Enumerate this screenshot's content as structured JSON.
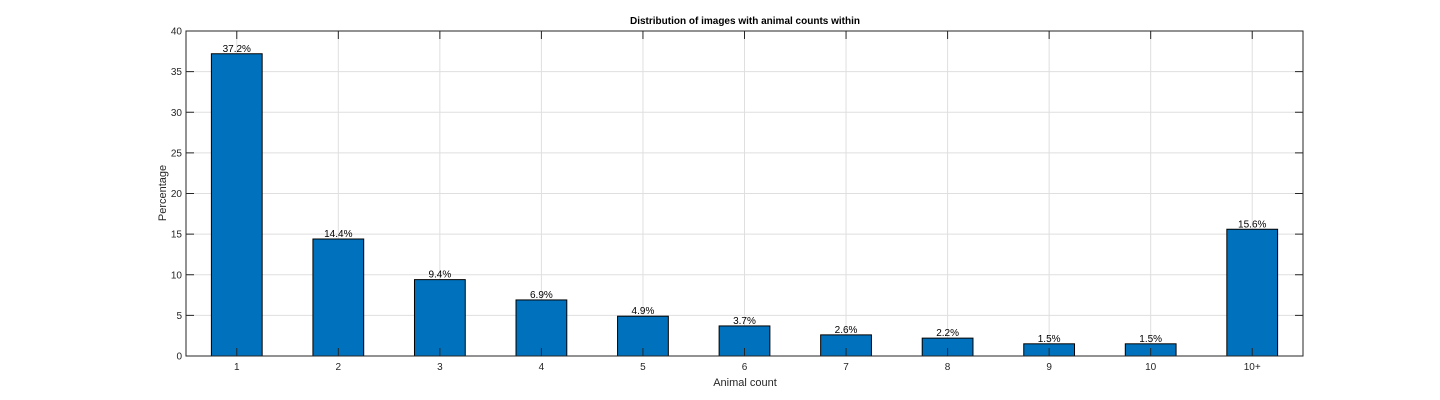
{
  "chart_data": {
    "type": "bar",
    "title": "Distribution of images with animal counts within",
    "xlabel": "Animal count",
    "ylabel": "Percentage",
    "categories": [
      "1",
      "2",
      "3",
      "4",
      "5",
      "6",
      "7",
      "8",
      "9",
      "10",
      "10+"
    ],
    "values": [
      37.2,
      14.4,
      9.4,
      6.9,
      4.9,
      3.7,
      2.6,
      2.2,
      1.5,
      1.5,
      15.6
    ],
    "data_labels": [
      "37.2%",
      "14.4%",
      "9.4%",
      "6.9%",
      "4.9%",
      "3.7%",
      "2.6%",
      "2.2%",
      "1.5%",
      "1.5%",
      "15.6%"
    ],
    "ylim": [
      0,
      40
    ],
    "yticks": [
      0,
      5,
      10,
      15,
      20,
      25,
      30,
      35,
      40
    ],
    "grid": true,
    "bar_color": "#0072BD",
    "bar_edge_color": "#000000"
  }
}
